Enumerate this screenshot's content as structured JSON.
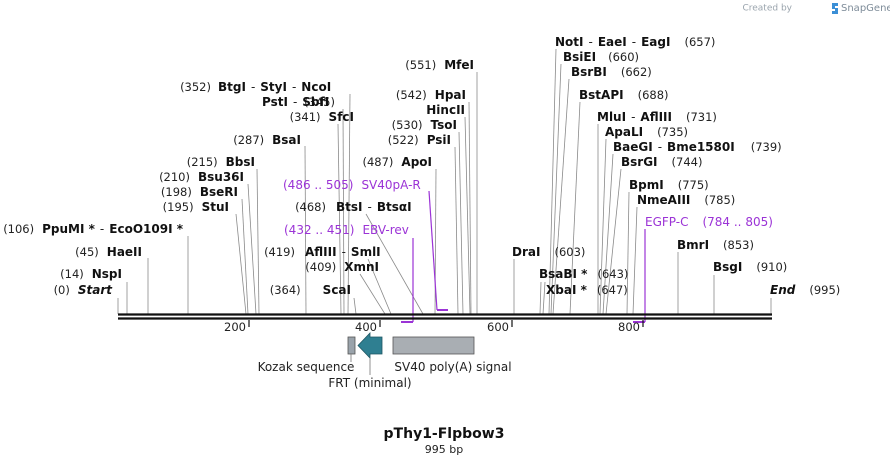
{
  "credit": {
    "prefix": "Created by",
    "brand": "SnapGene"
  },
  "plasmid": {
    "name": "pThy1-Flpbow3",
    "length_label": "995 bp"
  },
  "ruler": {
    "ticks": [
      "200",
      "400",
      "600",
      "800"
    ]
  },
  "sites": [
    {
      "pos": "(0)",
      "name": "Start"
    },
    {
      "pos": "(14)",
      "name": "NspI"
    },
    {
      "pos": "(45)",
      "name": "HaeII"
    },
    {
      "pos": "(106)",
      "name": "PpuMI *",
      "sep": "-",
      "name2": "EcoO109I *"
    },
    {
      "pos": "(195)",
      "name": "StuI"
    },
    {
      "pos": "(198)",
      "name": "BseRI"
    },
    {
      "pos": "(210)",
      "name": "Bsu36I"
    },
    {
      "pos": "(215)",
      "name": "BbsI"
    },
    {
      "pos": "(287)",
      "name": "BsaI"
    },
    {
      "pos": "(341)",
      "name": "SfcI"
    },
    {
      "pos": "(345)",
      "name": "PstI",
      "sep": "-",
      "name2": "SbfI"
    },
    {
      "pos": "(352)",
      "name": "BtgI",
      "sep": "-",
      "name2": "StyI",
      "sep2": "-",
      "name3": "NcoI"
    },
    {
      "pos": "(364)",
      "name": "ScaI"
    },
    {
      "pos": "(409)",
      "name": "XmnI"
    },
    {
      "pos": "(419)",
      "name": "AflIII",
      "sep": "-",
      "name2": "SmlI"
    },
    {
      "pos": "(468)",
      "name": "BtsI",
      "sep": "-",
      "name2": "BtsαI"
    },
    {
      "pos": "(487)",
      "name": "ApoI"
    },
    {
      "pos": "(522)",
      "name": "PsiI"
    },
    {
      "pos": "(530)",
      "name": "TsoI"
    },
    {
      "pos": "",
      "name": "HincII"
    },
    {
      "pos": "(542)",
      "name": "HpaI"
    },
    {
      "pos": "(551)",
      "name": "MfeI"
    },
    {
      "pos": "(603)",
      "name": "DraI"
    },
    {
      "pos": "(643)",
      "name": "BsaBI *"
    },
    {
      "pos": "(647)",
      "name": "XbaI *"
    },
    {
      "pos": "(657)",
      "name": "NotI",
      "sep": "-",
      "name2": "EaeI",
      "sep2": "-",
      "name3": "EagI"
    },
    {
      "pos": "(660)",
      "name": "BsiEI"
    },
    {
      "pos": "(662)",
      "name": "BsrBI"
    },
    {
      "pos": "(688)",
      "name": "BstAPI"
    },
    {
      "pos": "(731)",
      "name": "MluI",
      "sep": "-",
      "name2": "AflIII"
    },
    {
      "pos": "(735)",
      "name": "ApaLI"
    },
    {
      "pos": "(739)",
      "name": "BaeGI",
      "sep": "-",
      "name2": "Bme1580I"
    },
    {
      "pos": "(744)",
      "name": "BsrGI"
    },
    {
      "pos": "(775)",
      "name": "BpmI"
    },
    {
      "pos": "(785)",
      "name": "NmeAIII"
    },
    {
      "pos": "(853)",
      "name": "BmrI"
    },
    {
      "pos": "(910)",
      "name": "BsgI"
    },
    {
      "pos": "(995)",
      "name": "End"
    }
  ],
  "primers": [
    {
      "name": "EBV-rev",
      "range": "(432 .. 451)",
      "direction": "reverse"
    },
    {
      "name": "SV40pA-R",
      "range": "(486 .. 505)",
      "direction": "reverse"
    },
    {
      "name": "EGFP-C",
      "range": "(784 .. 805)",
      "direction": "forward"
    }
  ],
  "features": [
    {
      "name": "Kozak sequence",
      "type": "regulatory",
      "color": "#9aa3ab"
    },
    {
      "name": "FRT (minimal)",
      "type": "protein_bind",
      "color": "#2f7f91"
    },
    {
      "name": "SV40 poly(A) signal",
      "type": "polyA_signal",
      "color": "#a9aeb3"
    }
  ],
  "colors": {
    "primer": "#9b33d6",
    "backbone": "#111111",
    "leader": "#8a8a8a"
  }
}
